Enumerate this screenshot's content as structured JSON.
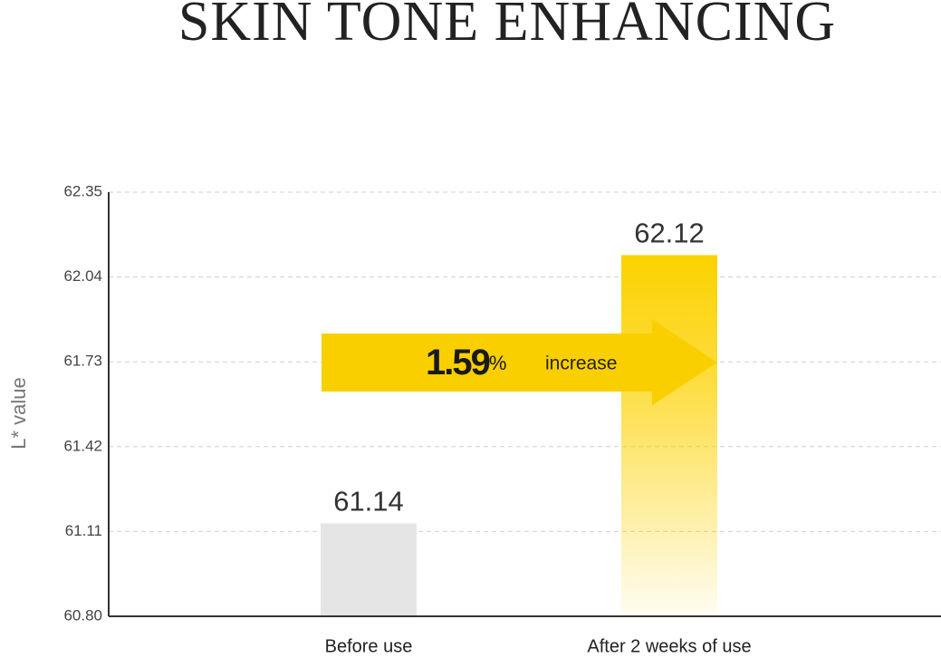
{
  "chart_data": {
    "type": "bar",
    "title": "SKIN TONE ENHANCING",
    "y_label": "L* value",
    "categories": [
      "Before use",
      "After 2 weeks of use"
    ],
    "values": [
      61.14,
      62.12
    ],
    "value_labels": [
      "61.14",
      "62.12"
    ],
    "colors": [
      "#e5e5e5",
      "#fcd200"
    ],
    "ylim": [
      60.8,
      62.35
    ],
    "yticks": [
      {
        "value": 60.8,
        "label": "60.80"
      },
      61.11,
      61.42,
      61.73,
      62.04,
      62.35
    ],
    "grid": true,
    "annotation": {
      "value": "1.59",
      "unit": "%",
      "text": "increase",
      "color": "#f9cf00"
    }
  }
}
